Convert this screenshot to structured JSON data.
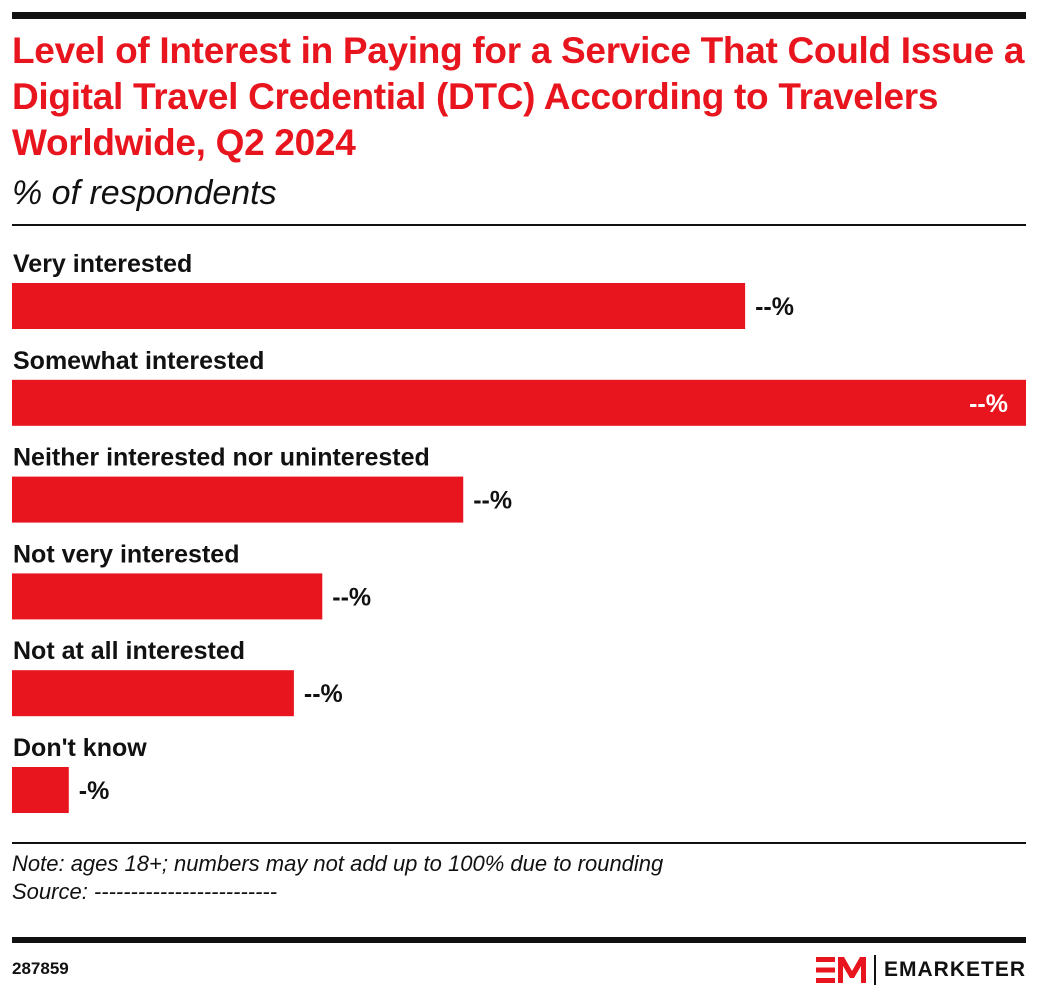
{
  "header": {
    "title": "Level of Interest in Paying for a Service That Could Issue a Digital Travel Credential (DTC) According to Travelers Worldwide, Q2 2024",
    "subtitle": "% of respondents"
  },
  "chart_data": {
    "type": "bar",
    "orientation": "horizontal",
    "title": "Level of Interest in Paying for a Service That Could Issue a Digital Travel Credential (DTC) According to Travelers Worldwide, Q2 2024",
    "subtitle": "% of respondents",
    "categories": [
      "Very interested",
      "Somewhat interested",
      "Neither interested nor uninterested",
      "Not very interested",
      "Not at all interested",
      "Don't know"
    ],
    "values": [
      72.3,
      100,
      44.5,
      30.6,
      27.8,
      5.6
    ],
    "value_labels": [
      "--%",
      "--%",
      "--%",
      "--%",
      "--%",
      "-%"
    ],
    "xlim": [
      0,
      100
    ],
    "grid": false,
    "legend": "none",
    "bar_color": "#e8141e"
  },
  "footer": {
    "note": "Note: ages 18+; numbers may not add up to 100% due to rounding",
    "source": "Source: -------------------------",
    "chart_id": "287859",
    "brand": "EMARKETER"
  },
  "colors": {
    "accent": "#e8141e",
    "text": "#111111",
    "inside_label": "#ffffff"
  }
}
